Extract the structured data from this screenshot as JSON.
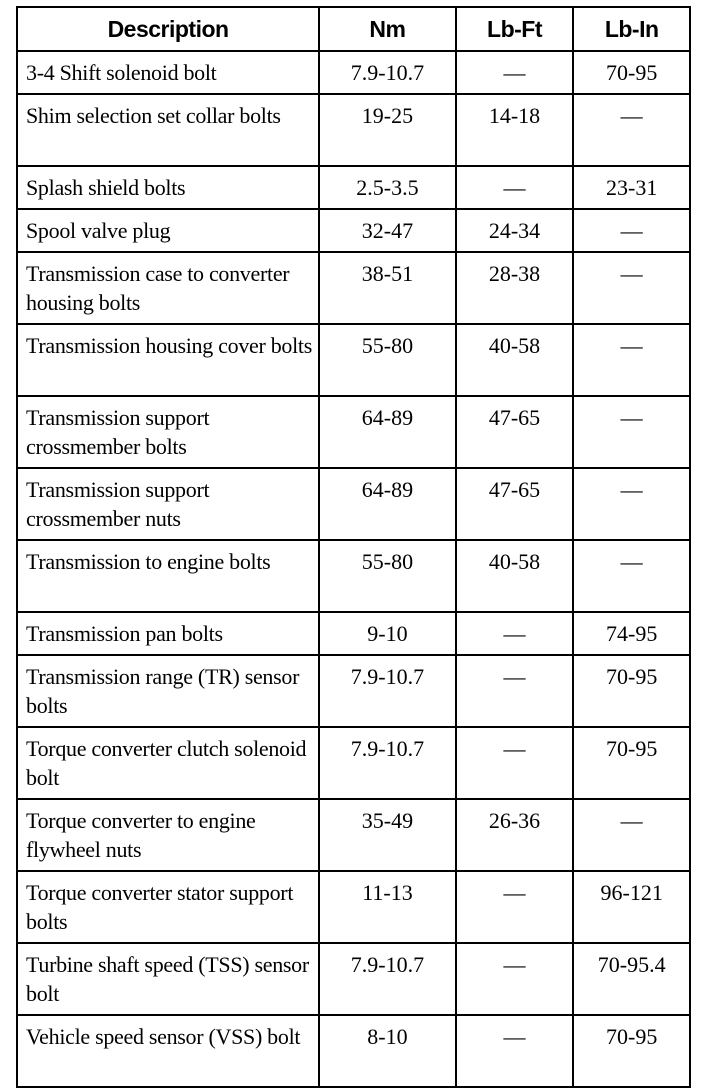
{
  "headers": [
    "Description",
    "Nm",
    "Lb-Ft",
    "Lb-In"
  ],
  "rows": [
    {
      "desc": "3-4 Shift solenoid bolt",
      "nm": "7.9-10.7",
      "lbft": "—",
      "lbin": "70-95"
    },
    {
      "desc": "Shim selection set collar bolts",
      "nm": "19-25",
      "lbft": "14-18",
      "lbin": "—"
    },
    {
      "desc": "Splash shield bolts",
      "nm": "2.5-3.5",
      "lbft": "—",
      "lbin": "23-31"
    },
    {
      "desc": "Spool valve plug",
      "nm": "32-47",
      "lbft": "24-34",
      "lbin": "—"
    },
    {
      "desc": "Transmission case to converter housing bolts",
      "nm": "38-51",
      "lbft": "28-38",
      "lbin": "—"
    },
    {
      "desc": "Transmission housing cover bolts",
      "nm": "55-80",
      "lbft": "40-58",
      "lbin": "—"
    },
    {
      "desc": "Transmission support crossmember bolts",
      "nm": "64-89",
      "lbft": "47-65",
      "lbin": "—"
    },
    {
      "desc": "Transmission support crossmember nuts",
      "nm": "64-89",
      "lbft": "47-65",
      "lbin": "—"
    },
    {
      "desc": "Transmission to engine bolts",
      "nm": "55-80",
      "lbft": "40-58",
      "lbin": "—"
    },
    {
      "desc": "Transmission pan bolts",
      "nm": "9-10",
      "lbft": "—",
      "lbin": "74-95"
    },
    {
      "desc": "Transmission range (TR) sensor bolts",
      "nm": "7.9-10.7",
      "lbft": "—",
      "lbin": "70-95"
    },
    {
      "desc": "Torque converter clutch solenoid bolt",
      "nm": "7.9-10.7",
      "lbft": "—",
      "lbin": "70-95"
    },
    {
      "desc": "Torque converter to engine flywheel nuts",
      "nm": "35-49",
      "lbft": "26-36",
      "lbin": "—"
    },
    {
      "desc": "Torque converter stator support bolts",
      "nm": "11-13",
      "lbft": "—",
      "lbin": "96-121"
    },
    {
      "desc": "Turbine shaft speed (TSS) sensor bolt",
      "nm": "7.9-10.7",
      "lbft": "—",
      "lbin": "70-95.4"
    },
    {
      "desc": "Vehicle speed sensor (VSS) bolt",
      "nm": "8-10",
      "lbft": "—",
      "lbin": "70-95"
    }
  ]
}
